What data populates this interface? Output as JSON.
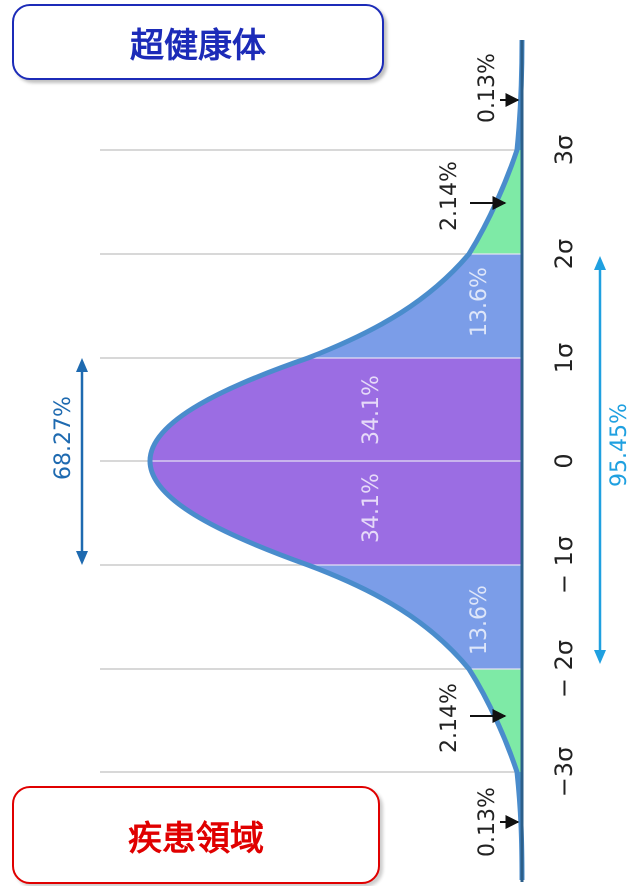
{
  "labels": {
    "top": "超健康体",
    "bottom": "疾患領域"
  },
  "distribution": {
    "ticks": [
      "3σ",
      "2σ",
      "1σ",
      "0",
      "− 1σ",
      "− 2σ",
      "−3σ"
    ],
    "segments": [
      {
        "name": "center",
        "value": "34.1%",
        "color": "#9b6de3"
      },
      {
        "name": "one-two",
        "value": "13.6%",
        "color": "#7b9de8"
      },
      {
        "name": "two-three",
        "value": "2.14%",
        "color": "#7eeaa6"
      },
      {
        "name": "tail",
        "value": "0.13%"
      }
    ],
    "ranges": {
      "one_sigma": "68.27%",
      "two_sigma": "95.45%"
    },
    "colors": {
      "curve": "#4a8ccc",
      "axis": "#2c5f8a",
      "one_sigma_arrow": "#1e6ab0",
      "two_sigma_arrow": "#1fa0e0",
      "grid": "#cccccc"
    }
  }
}
